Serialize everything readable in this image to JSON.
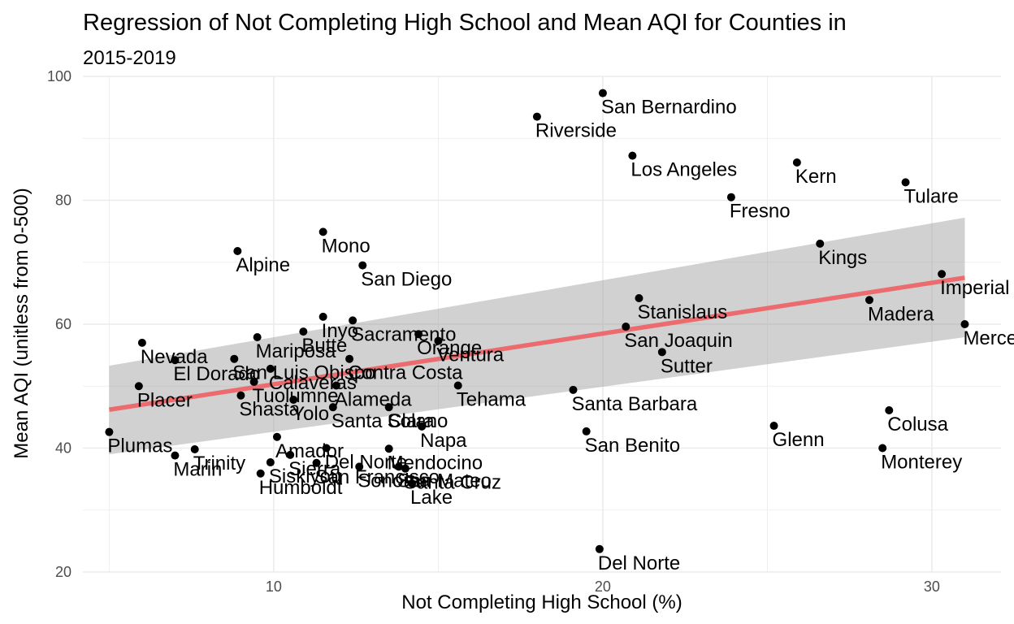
{
  "colors": {
    "background": "#ffffff",
    "grid": "#ebebeb",
    "point": "#000000",
    "regression_line": "#ec6b6e",
    "confidence_band": "#999999"
  },
  "chart_data": {
    "type": "scatter",
    "title": "Regression of Not Completing High School and Mean AQI for Counties in",
    "subtitle": "2015-2019",
    "xlabel": "Not Completing High School (%)",
    "ylabel": "Mean AQI (unitless from 0-500)",
    "xlim": [
      4.2,
      32.1
    ],
    "ylim": [
      20,
      100
    ],
    "xticks": [
      10,
      20,
      30
    ],
    "yticks": [
      20,
      40,
      60,
      80,
      100
    ],
    "grid": true,
    "legend": "none",
    "points": [
      {
        "label": "San Bernardino",
        "x": 20.0,
        "y": 97.3
      },
      {
        "label": "Riverside",
        "x": 18.0,
        "y": 93.5
      },
      {
        "label": "Los Angeles",
        "x": 20.9,
        "y": 87.2
      },
      {
        "label": "Kern",
        "x": 25.9,
        "y": 86.1
      },
      {
        "label": "Tulare",
        "x": 29.2,
        "y": 82.9
      },
      {
        "label": "Fresno",
        "x": 23.9,
        "y": 80.5
      },
      {
        "label": "Mono",
        "x": 11.5,
        "y": 74.9
      },
      {
        "label": "Kings",
        "x": 26.6,
        "y": 73.0
      },
      {
        "label": "Alpine",
        "x": 8.9,
        "y": 71.8
      },
      {
        "label": "San Diego",
        "x": 12.7,
        "y": 69.5
      },
      {
        "label": "Imperial",
        "x": 30.3,
        "y": 68.1
      },
      {
        "label": "Stanislaus",
        "x": 21.1,
        "y": 64.2
      },
      {
        "label": "Madera",
        "x": 28.1,
        "y": 63.9
      },
      {
        "label": "Inyo",
        "x": 11.5,
        "y": 61.2
      },
      {
        "label": "Sacramento",
        "x": 12.4,
        "y": 60.6
      },
      {
        "label": "Merced",
        "x": 31.0,
        "y": 60.0
      },
      {
        "label": "San Joaquin",
        "x": 20.7,
        "y": 59.6
      },
      {
        "label": "Butte",
        "x": 10.9,
        "y": 58.8
      },
      {
        "label": "Orange",
        "x": 14.4,
        "y": 58.4
      },
      {
        "label": "Mariposa",
        "x": 9.5,
        "y": 57.9
      },
      {
        "label": "Ventura",
        "x": 15.0,
        "y": 57.3
      },
      {
        "label": "Nevada",
        "x": 6.0,
        "y": 57.0
      },
      {
        "label": "Sutter",
        "x": 21.8,
        "y": 55.5
      },
      {
        "label": "Contra Costa",
        "x": 12.3,
        "y": 54.4
      },
      {
        "label": "El Dorado",
        "x": 7.0,
        "y": 54.2
      },
      {
        "label": "San Luis Obispo",
        "x": 8.8,
        "y": 54.4
      },
      {
        "label": "Calaveras",
        "x": 9.9,
        "y": 52.8
      },
      {
        "label": "Tuolumne",
        "x": 9.4,
        "y": 50.7
      },
      {
        "label": "Alameda",
        "x": 11.9,
        "y": 50.1
      },
      {
        "label": "Tehama",
        "x": 15.6,
        "y": 50.1
      },
      {
        "label": "Placer",
        "x": 5.9,
        "y": 50.0
      },
      {
        "label": "Santa Barbara",
        "x": 19.1,
        "y": 49.4
      },
      {
        "label": "Shasta",
        "x": 9.0,
        "y": 48.5
      },
      {
        "label": "Yolo",
        "x": 10.6,
        "y": 47.8
      },
      {
        "label": "Santa Clara",
        "x": 11.8,
        "y": 46.6
      },
      {
        "label": "Solano",
        "x": 13.5,
        "y": 46.6
      },
      {
        "label": "Colusa",
        "x": 28.7,
        "y": 46.1
      },
      {
        "label": "Napa",
        "x": 14.5,
        "y": 43.5
      },
      {
        "label": "Glenn",
        "x": 25.2,
        "y": 43.6
      },
      {
        "label": "Plumas",
        "x": 5.0,
        "y": 42.6
      },
      {
        "label": "San Benito",
        "x": 19.5,
        "y": 42.7
      },
      {
        "label": "Amador",
        "x": 10.1,
        "y": 41.8
      },
      {
        "label": "Monterey",
        "x": 28.5,
        "y": 40.0
      },
      {
        "label": "Del Norte",
        "x": 11.6,
        "y": 40.0
      },
      {
        "label": "Mendocino",
        "x": 13.5,
        "y": 39.9
      },
      {
        "label": "Sierra",
        "x": 10.5,
        "y": 38.9
      },
      {
        "label": "Trinity",
        "x": 7.6,
        "y": 39.8
      },
      {
        "label": "Marin",
        "x": 7.0,
        "y": 38.8
      },
      {
        "label": "Siskiyou",
        "x": 9.9,
        "y": 37.7
      },
      {
        "label": "San Francisco",
        "x": 11.3,
        "y": 37.6
      },
      {
        "label": "San Mateo",
        "x": 13.8,
        "y": 37.0
      },
      {
        "label": "Sonoma",
        "x": 12.6,
        "y": 37.0
      },
      {
        "label": "Humboldt",
        "x": 9.6,
        "y": 35.9
      },
      {
        "label": "Santa Cruz",
        "x": 14.0,
        "y": 36.7
      },
      {
        "label": "Lake",
        "x": 14.2,
        "y": 34.3
      },
      {
        "label": "Del Norte",
        "x": 19.9,
        "y": 23.7
      }
    ],
    "regression": {
      "x_range": [
        5.0,
        31.0
      ],
      "fit_y": [
        46.2,
        67.5
      ],
      "ci_lower": [
        39.0,
        57.9
      ],
      "ci_upper": [
        53.3,
        77.2
      ]
    }
  }
}
